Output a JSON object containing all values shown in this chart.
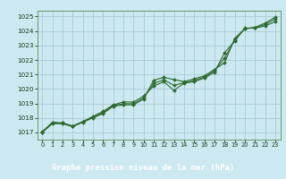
{
  "title": "Graphe pression niveau de la mer (hPa)",
  "bg_color": "#cce8f0",
  "plot_bg_color": "#cce8f0",
  "label_bg_color": "#2d6a2d",
  "label_text_color": "#ffffff",
  "grid_color": "#a8ccd8",
  "line_color": "#2d6a2d",
  "marker_color": "#2d6a2d",
  "xlim": [
    -0.5,
    23.5
  ],
  "ylim": [
    1016.5,
    1025.4
  ],
  "yticks": [
    1017,
    1018,
    1019,
    1020,
    1021,
    1022,
    1023,
    1024,
    1025
  ],
  "xticks": [
    0,
    1,
    2,
    3,
    4,
    5,
    6,
    7,
    8,
    9,
    10,
    11,
    12,
    13,
    14,
    15,
    16,
    17,
    18,
    19,
    20,
    21,
    22,
    23
  ],
  "series": [
    [
      1017.0,
      1017.65,
      1017.65,
      1017.45,
      1017.75,
      1018.1,
      1018.45,
      1018.9,
      1019.1,
      1019.1,
      1019.5,
      1020.2,
      1020.5,
      1019.9,
      1020.4,
      1020.5,
      1020.75,
      1021.15,
      1022.5,
      1023.3,
      1024.2,
      1024.2,
      1024.35,
      1024.65
    ],
    [
      1017.0,
      1017.6,
      1017.6,
      1017.4,
      1017.7,
      1018.0,
      1018.3,
      1018.8,
      1018.9,
      1018.9,
      1019.3,
      1020.6,
      1020.8,
      1020.65,
      1020.5,
      1020.7,
      1020.9,
      1021.35,
      1021.8,
      1023.5,
      1024.15,
      1024.25,
      1024.55,
      1024.95
    ],
    [
      1017.05,
      1017.7,
      1017.65,
      1017.4,
      1017.72,
      1018.05,
      1018.35,
      1018.85,
      1018.98,
      1018.98,
      1019.38,
      1020.38,
      1020.63,
      1020.25,
      1020.43,
      1020.58,
      1020.82,
      1021.25,
      1022.12,
      1023.38,
      1024.17,
      1024.22,
      1024.45,
      1024.82
    ]
  ]
}
